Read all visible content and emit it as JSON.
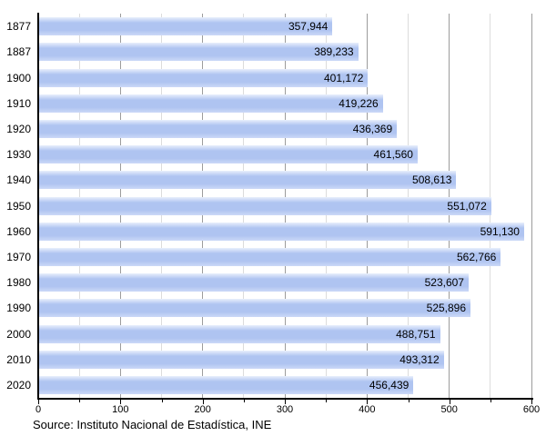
{
  "chart_data": {
    "type": "bar",
    "orientation": "horizontal",
    "title": "",
    "xlabel": "",
    "ylabel": "",
    "categories": [
      "1877",
      "1887",
      "1900",
      "1910",
      "1920",
      "1930",
      "1940",
      "1950",
      "1960",
      "1970",
      "1980",
      "1990",
      "2000",
      "2010",
      "2020"
    ],
    "values": [
      357944,
      389233,
      401172,
      419226,
      436369,
      461560,
      508613,
      551072,
      591130,
      562766,
      523607,
      525896,
      488751,
      493312,
      456439
    ],
    "value_labels": [
      "357,944",
      "389,233",
      "401,172",
      "419,226",
      "436,369",
      "461,560",
      "508,613",
      "551,072",
      "591,130",
      "562,766",
      "523,607",
      "525,896",
      "488,751",
      "493,312",
      "456,439"
    ],
    "xlim": [
      0,
      600
    ],
    "x_axis_scale": "thousands",
    "x_major_tick_labels": [
      "0",
      "100",
      "200",
      "300",
      "400",
      "500",
      "600"
    ],
    "x_major_step": 100,
    "x_minor_step": 50,
    "grid": "vertical, major and minor",
    "legend": false
  },
  "footer": {
    "source_label": "Source: Instituto Nacional de Estadística, INE"
  },
  "colors": {
    "background": "#ffffff",
    "bar_fill": "#afc4f1",
    "bar_highlight": "#e9effc",
    "bar_lowlight": "#ccd9f7",
    "grid_major": "#9c9c9c",
    "grid_minor": "#dcdcdc",
    "axis": "#000000",
    "text": "#000000"
  }
}
